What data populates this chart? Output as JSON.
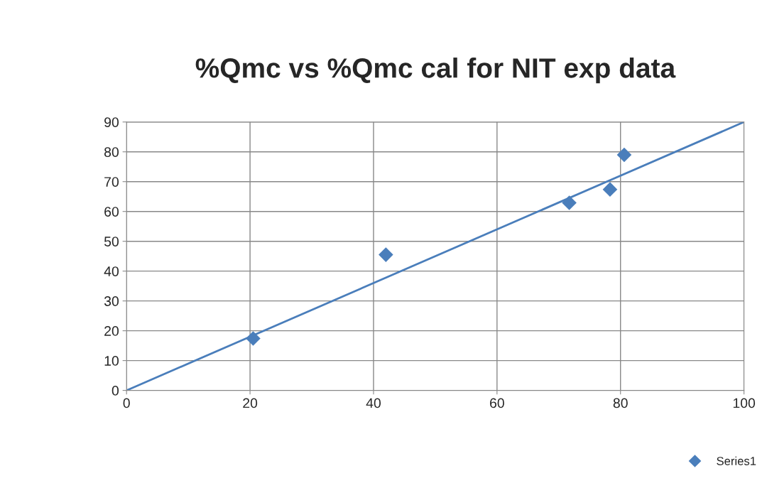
{
  "chart_data": {
    "type": "scatter",
    "title": "%Qmc vs %Qmc cal for NIT exp data",
    "series": [
      {
        "name": "Series1",
        "color": "#4a7ebb",
        "marker": "diamond",
        "x": [
          20.5,
          42.0,
          71.7,
          78.3,
          80.6
        ],
        "values": [
          17.4,
          45.5,
          62.9,
          67.4,
          79.0
        ]
      },
      {
        "type": "line",
        "color": "#4a7ebb",
        "marker": "none",
        "line_style": "solid",
        "x": [
          0,
          100
        ],
        "values": [
          0,
          90
        ]
      }
    ],
    "xlim": [
      0,
      100
    ],
    "xticks": [
      0,
      20,
      40,
      60,
      80,
      100
    ],
    "ylim": [
      0,
      90
    ],
    "yticks": [
      0,
      10,
      20,
      30,
      40,
      50,
      60,
      70,
      80,
      90
    ],
    "grid": true,
    "legend": "bottom right"
  }
}
